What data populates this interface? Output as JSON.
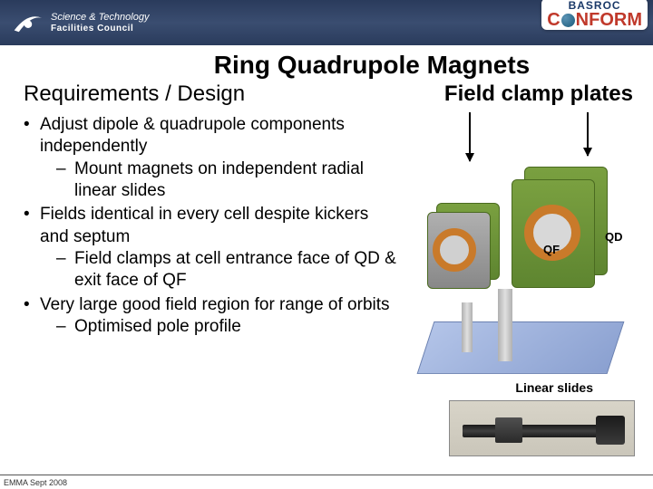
{
  "header": {
    "stfc_line1": "Science & Technology",
    "stfc_line2": "Facilities Council",
    "basroc": "BASROC",
    "conform_left": "C",
    "conform_right": "NFORM"
  },
  "title": "Ring Quadrupole Magnets",
  "subtitle_left": "Requirements / Design",
  "subtitle_right": "Field clamp plates",
  "bullets": [
    {
      "text": "Adjust dipole & quadrupole components independently",
      "sub": [
        "Mount magnets on independent radial linear slides"
      ]
    },
    {
      "text": "Fields identical in every cell despite kickers and septum",
      "sub": [
        "Field clamps at cell entrance face of QD & exit face of QF"
      ]
    },
    {
      "text": "Very large good field region for range of orbits",
      "sub": [
        "Optimised pole profile"
      ]
    }
  ],
  "labels": {
    "qf": "QF",
    "qd": "QD",
    "linear_slides": "Linear slides"
  },
  "footer": "EMMA Sept 2008",
  "colors": {
    "header_bg": "#2f4166",
    "conform_red": "#c0392b",
    "basroc_blue": "#1a3968",
    "magnet_green": "#6e9638",
    "coil_orange": "#c97a2a",
    "baseplate_blue": "#9ab0dc"
  }
}
